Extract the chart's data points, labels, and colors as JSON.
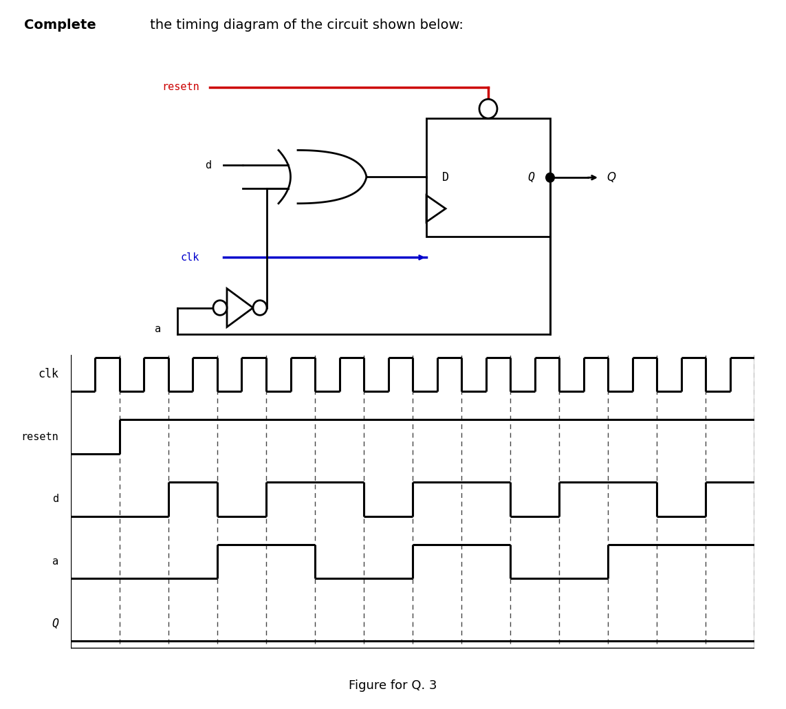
{
  "title_bold": "Complete",
  "title_rest": " the timing diagram of the circuit shown below:",
  "figure_caption": "Figure for Q. 3",
  "bg_color": "#ffffff",
  "signals": [
    "clk",
    "resetn",
    "d",
    "a",
    "Q"
  ],
  "num_periods": 14,
  "dashed_lines_x": [
    1,
    2,
    3,
    4,
    5,
    6,
    7,
    8,
    9,
    10,
    11,
    12,
    13,
    14
  ],
  "resetn_label_color": "#cc0000",
  "clk_label_color": "#0000cc",
  "resetn_wire_color": "#cc0000",
  "clk_wire_color": "#0000cc",
  "line_width": 2.0
}
